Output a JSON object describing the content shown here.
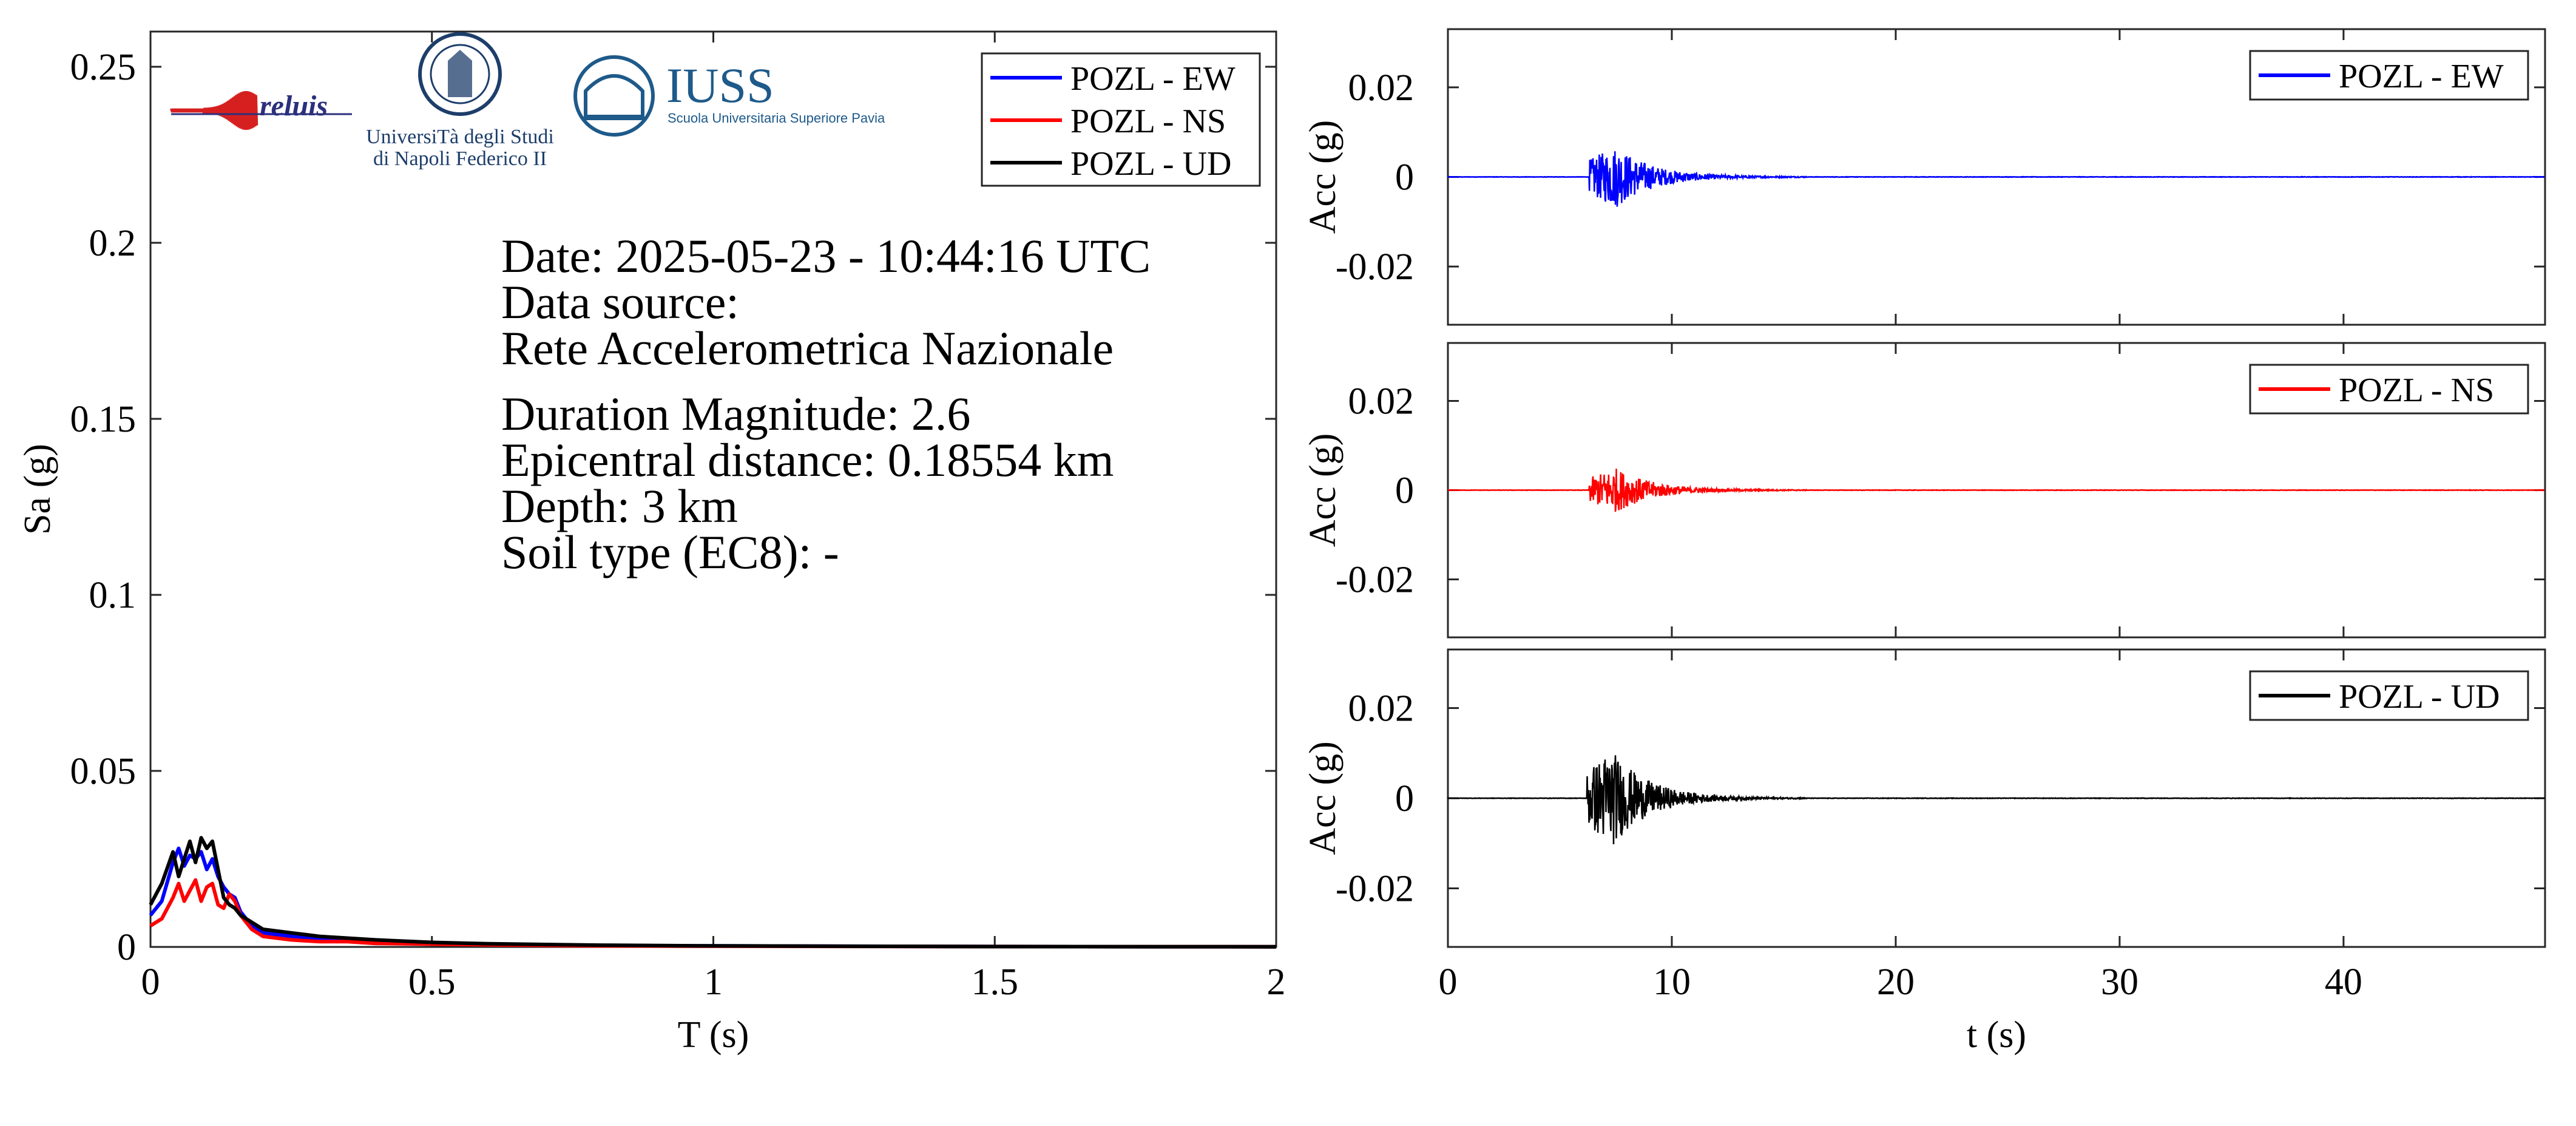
{
  "chart_data": [
    {
      "type": "line",
      "xlabel": "T (s)",
      "ylabel": "Sa (g)",
      "xlim": [
        0,
        2
      ],
      "ylim": [
        0,
        0.26
      ],
      "xticks": [
        0,
        0.5,
        1,
        1.5,
        2
      ],
      "xtick_labels": [
        "0",
        "0.5",
        "1",
        "1.5",
        "2"
      ],
      "yticks": [
        0,
        0.05,
        0.1,
        0.15,
        0.2,
        0.25
      ],
      "ytick_labels": [
        "0",
        "0.05",
        "0.1",
        "0.15",
        "0.2",
        "0.25"
      ],
      "legend": {
        "position": "top-right",
        "entries": [
          {
            "label": "POZL - EW",
            "color": "#0000ff"
          },
          {
            "label": "POZL - NS",
            "color": "#ff0000"
          },
          {
            "label": "POZL - UD",
            "color": "#000000"
          }
        ]
      },
      "info_lines": [
        "Date: 2025-05-23 - 10:44:16 UTC",
        "Data source:",
        "Rete Accelerometrica Nazionale",
        "Duration Magnitude: 2.6",
        "Epicentral distance: 0.18554 km",
        "Depth: 3 km",
        "Soil type (EC8): -"
      ],
      "logos": {
        "reluis": "reluis",
        "unina": [
          "UniversiTà degli Studi",
          "di Napoli Federico II"
        ],
        "iuss": "IUSS",
        "iuss_sub": "Scuola Universitaria Superiore Pavia"
      },
      "series": [
        {
          "name": "POZL - EW",
          "color": "#0000ff",
          "x": [
            0,
            0.02,
            0.04,
            0.05,
            0.06,
            0.07,
            0.08,
            0.09,
            0.1,
            0.11,
            0.12,
            0.13,
            0.14,
            0.15,
            0.16,
            0.18,
            0.2,
            0.25,
            0.3,
            0.35,
            0.4,
            0.5,
            0.6,
            0.8,
            1.0,
            1.5,
            2.0
          ],
          "y": [
            0.009,
            0.013,
            0.024,
            0.028,
            0.023,
            0.026,
            0.025,
            0.027,
            0.022,
            0.025,
            0.02,
            0.017,
            0.015,
            0.014,
            0.01,
            0.006,
            0.004,
            0.003,
            0.002,
            0.002,
            0.0015,
            0.001,
            0.0007,
            0.0004,
            0.0003,
            0.0001,
            5e-05
          ]
        },
        {
          "name": "POZL - NS",
          "color": "#ff0000",
          "x": [
            0,
            0.02,
            0.04,
            0.05,
            0.06,
            0.07,
            0.08,
            0.09,
            0.1,
            0.11,
            0.12,
            0.13,
            0.14,
            0.15,
            0.16,
            0.18,
            0.2,
            0.25,
            0.3,
            0.35,
            0.4,
            0.5,
            0.6,
            0.8,
            1.0,
            1.5,
            2.0
          ],
          "y": [
            0.006,
            0.008,
            0.014,
            0.018,
            0.013,
            0.016,
            0.019,
            0.013,
            0.017,
            0.018,
            0.012,
            0.011,
            0.015,
            0.013,
            0.009,
            0.005,
            0.003,
            0.002,
            0.0015,
            0.0015,
            0.001,
            0.0008,
            0.0006,
            0.0003,
            0.0002,
            0.0001,
            5e-05
          ]
        },
        {
          "name": "POZL - UD",
          "color": "#000000",
          "x": [
            0,
            0.02,
            0.04,
            0.05,
            0.06,
            0.07,
            0.08,
            0.09,
            0.1,
            0.11,
            0.12,
            0.13,
            0.14,
            0.15,
            0.16,
            0.18,
            0.2,
            0.25,
            0.3,
            0.35,
            0.4,
            0.5,
            0.6,
            0.8,
            1.0,
            1.5,
            2.0
          ],
          "y": [
            0.012,
            0.018,
            0.027,
            0.02,
            0.025,
            0.03,
            0.024,
            0.031,
            0.028,
            0.03,
            0.022,
            0.014,
            0.012,
            0.011,
            0.009,
            0.007,
            0.005,
            0.004,
            0.003,
            0.0025,
            0.002,
            0.0013,
            0.0009,
            0.0005,
            0.0003,
            0.0001,
            5e-05
          ]
        }
      ]
    },
    {
      "type": "line",
      "xlabel": "",
      "ylabel": "Acc (g)",
      "xlim": [
        0,
        49
      ],
      "ylim": [
        -0.033,
        0.033
      ],
      "yticks": [
        -0.02,
        0,
        0.02
      ],
      "ytick_labels": [
        "-0.02",
        "0",
        "0.02"
      ],
      "legend": {
        "position": "top-right",
        "entries": [
          {
            "label": "POZL - EW",
            "color": "#0000ff"
          }
        ]
      },
      "series": [
        {
          "name": "POZL - EW",
          "color": "#0000ff",
          "onset": 6.3,
          "peak_time": 7.5,
          "peak": 0.007,
          "coda_end": 16
        }
      ]
    },
    {
      "type": "line",
      "xlabel": "",
      "ylabel": "Acc (g)",
      "xlim": [
        0,
        49
      ],
      "ylim": [
        -0.033,
        0.033
      ],
      "yticks": [
        -0.02,
        0,
        0.02
      ],
      "ytick_labels": [
        "-0.02",
        "0",
        "0.02"
      ],
      "legend": {
        "position": "top-right",
        "entries": [
          {
            "label": "POZL - NS",
            "color": "#ff0000"
          }
        ]
      },
      "series": [
        {
          "name": "POZL - NS",
          "color": "#ff0000",
          "onset": 6.3,
          "peak_time": 7.5,
          "peak": 0.005,
          "coda_end": 16
        }
      ]
    },
    {
      "type": "line",
      "xlabel": "t (s)",
      "ylabel": "Acc (g)",
      "xlim": [
        0,
        49
      ],
      "ylim": [
        -0.033,
        0.033
      ],
      "xticks": [
        0,
        10,
        20,
        30,
        40
      ],
      "xtick_labels": [
        "0",
        "10",
        "20",
        "30",
        "40"
      ],
      "yticks": [
        -0.02,
        0,
        0.02
      ],
      "ytick_labels": [
        "-0.02",
        "0",
        "0.02"
      ],
      "legend": {
        "position": "top-right",
        "entries": [
          {
            "label": "POZL - UD",
            "color": "#000000"
          }
        ]
      },
      "series": [
        {
          "name": "POZL - UD",
          "color": "#000000",
          "onset": 6.2,
          "peak_time": 7.3,
          "peak": 0.011,
          "coda_end": 16
        }
      ]
    }
  ]
}
